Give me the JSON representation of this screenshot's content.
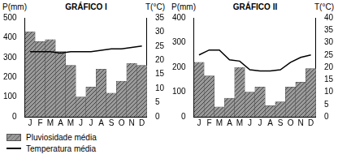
{
  "chart_data": [
    {
      "type": "bar",
      "title": "GRÁFICO I",
      "ylabel": "P(mm)",
      "y2label": "T(°C)",
      "categories": [
        "J",
        "F",
        "M",
        "A",
        "M",
        "J",
        "J",
        "A",
        "S",
        "O",
        "N",
        "D"
      ],
      "series": [
        {
          "name": "Pluviosidade média",
          "type": "bar",
          "color": "#9a9a9a",
          "values": [
            430,
            380,
            390,
            330,
            260,
            100,
            150,
            240,
            120,
            180,
            270,
            260
          ]
        },
        {
          "name": "Temperatura média",
          "type": "line",
          "axis": "y2",
          "color": "#000000",
          "marker": "none",
          "values": [
            23,
            23,
            23,
            22.5,
            23,
            23,
            23,
            23.5,
            24,
            24,
            24.5,
            25
          ]
        }
      ],
      "ylim": [
        0,
        500
      ],
      "yticks": [
        0,
        100,
        200,
        300,
        400,
        500
      ],
      "y2lim": [
        0,
        35
      ],
      "y2ticks": [
        0,
        5,
        10,
        15,
        20,
        25,
        30,
        35
      ],
      "grid": false,
      "legend": "bottom left"
    },
    {
      "type": "bar",
      "title": "GRÁFICO II",
      "ylabel": "P(mm)",
      "y2label": "T(°C)",
      "categories": [
        "J",
        "F",
        "M",
        "A",
        "M",
        "J",
        "J",
        "A",
        "S",
        "O",
        "N",
        "D"
      ],
      "series": [
        {
          "name": "Pluviosidade média",
          "type": "bar",
          "color": "#9a9a9a",
          "values": [
            220,
            165,
            40,
            75,
            200,
            100,
            120,
            45,
            60,
            120,
            140,
            195
          ]
        },
        {
          "name": "Temperatura média",
          "type": "line",
          "axis": "y2",
          "color": "#000000",
          "marker": "none",
          "values": [
            25,
            27,
            27,
            23,
            22.5,
            19,
            18.5,
            18.5,
            19,
            22,
            24,
            25
          ]
        }
      ],
      "ylim": [
        0,
        400
      ],
      "yticks": [
        0,
        100,
        200,
        300,
        400
      ],
      "y2lim": [
        0,
        40
      ],
      "y2ticks": [
        0,
        5,
        10,
        15,
        20,
        25,
        30,
        35,
        40
      ],
      "grid": false,
      "legend": "bottom left"
    }
  ]
}
